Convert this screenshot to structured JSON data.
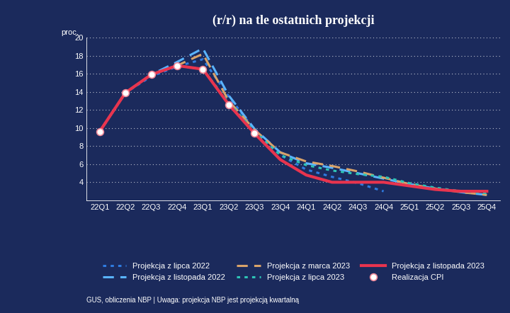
{
  "chart_data": {
    "type": "line",
    "title": "(r/r) na tle ostatnich projekcji",
    "y_label": "proc.",
    "footer": "GUS, obliczenia NBP | Uwaga: projekcja NBP jest projekcją kwartalną",
    "categories": [
      "22Q1",
      "22Q2",
      "22Q3",
      "22Q4",
      "23Q1",
      "23Q2",
      "23Q3",
      "23Q4",
      "24Q1",
      "24Q2",
      "24Q3",
      "24Q4",
      "25Q1",
      "25Q2",
      "25Q3",
      "25Q4"
    ],
    "ylim": [
      2,
      20
    ],
    "yticks": [
      4,
      6,
      8,
      10,
      12,
      14,
      16,
      18,
      20
    ],
    "grid": true,
    "legend": "bottom",
    "series": [
      {
        "name": "Projekcja z lipca 2022",
        "color": "#2f7be0",
        "line_style": "dotted",
        "values": [
          9.6,
          13.9,
          15.7,
          16.8,
          17.6,
          13.5,
          9.8,
          7.0,
          5.4,
          4.6,
          3.9,
          3.0,
          null,
          null,
          null,
          null
        ]
      },
      {
        "name": "Projekcja z listopada 2022",
        "color": "#5ab4ff",
        "line_style": "dashed",
        "values": [
          9.6,
          13.9,
          15.9,
          17.3,
          18.8,
          13.6,
          9.9,
          7.3,
          6.1,
          5.6,
          5.0,
          4.4,
          3.8,
          3.3,
          2.9,
          2.6
        ]
      },
      {
        "name": "Projekcja z marca 2023",
        "color": "#d9a36a",
        "line_style": "dashed",
        "values": [
          9.6,
          13.9,
          15.9,
          16.9,
          18.2,
          13.0,
          9.8,
          7.3,
          6.3,
          5.8,
          5.2,
          4.5,
          3.8,
          3.3,
          2.9,
          2.6
        ]
      },
      {
        "name": "Projekcja z lipca 2023",
        "color": "#2ec4b6",
        "line_style": "dotted",
        "values": [
          9.6,
          13.9,
          15.9,
          16.9,
          16.5,
          12.8,
          9.6,
          7.0,
          5.9,
          5.3,
          4.9,
          4.6,
          3.9,
          3.4,
          3.0,
          2.8
        ]
      },
      {
        "name": "Projekcja z listopada 2023",
        "color": "#e8344e",
        "line_style": "solid",
        "values": [
          9.6,
          13.9,
          15.9,
          16.9,
          16.5,
          12.6,
          9.4,
          6.5,
          4.8,
          4.0,
          4.0,
          4.0,
          3.6,
          3.2,
          3.0,
          3.0
        ]
      },
      {
        "name": "Realizacja CPI",
        "color": "#ffffff",
        "line_style": "none",
        "marker": "circle",
        "values": [
          9.6,
          13.9,
          15.9,
          16.9,
          16.5,
          12.6,
          9.4,
          null,
          null,
          null,
          null,
          null,
          null,
          null,
          null,
          null
        ]
      }
    ]
  }
}
